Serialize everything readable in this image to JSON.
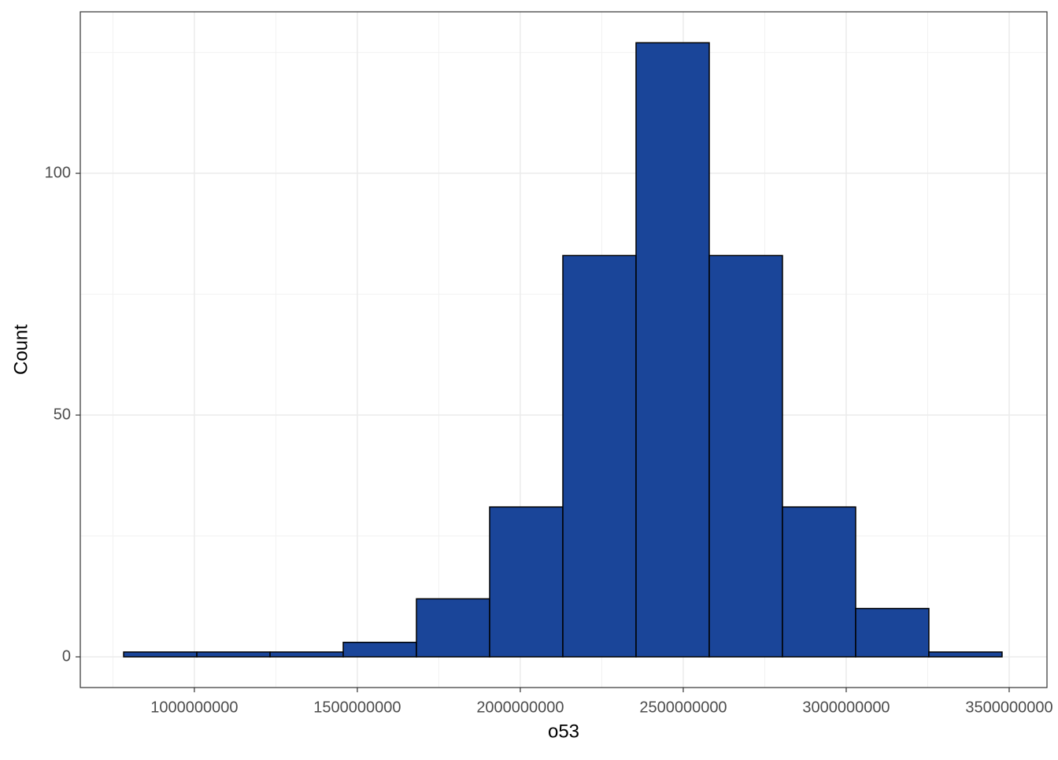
{
  "chart_data": {
    "type": "histogram",
    "x_label": "o53",
    "y_label": "Count",
    "bins": [
      783000000,
      1007600000,
      1232200000,
      1456800000,
      1681400000,
      1906000000,
      2130600000,
      2355200000,
      2579800000,
      2804400000,
      3029000000,
      3253600000,
      3478200000
    ],
    "values": [
      1,
      1,
      1,
      3,
      12,
      31,
      83,
      127,
      83,
      31,
      10,
      1
    ],
    "color": "#1a4599",
    "edge_color": "#000000",
    "xlim": [
      650000000,
      3616000000
    ],
    "ylim": [
      -6.35,
      133.4
    ],
    "xticks": [
      1000000000,
      1500000000,
      2000000000,
      2500000000,
      3000000000,
      3500000000
    ],
    "yticks": [
      0,
      50,
      100
    ],
    "x_minor_grid": [
      750000000,
      1250000000,
      1750000000,
      2250000000,
      2750000000,
      3250000000
    ],
    "y_minor_grid": [
      25,
      75,
      125
    ],
    "grid": true
  }
}
